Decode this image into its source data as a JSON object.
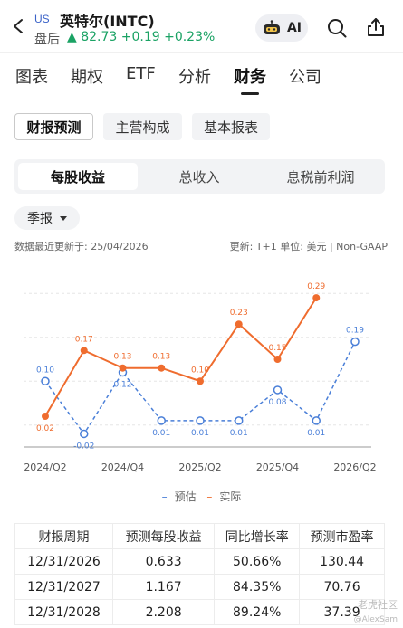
{
  "header": {
    "market_badge": "US",
    "stock_name": "英特尔(INTC)",
    "session_label": "盘后",
    "quote": "▲ 82.73 +0.19 +0.23%",
    "ai_label": "AI"
  },
  "tabs": [
    "图表",
    "期权",
    "ETF",
    "分析",
    "财务",
    "公司"
  ],
  "active_tab": "财务",
  "sub_buttons": [
    "财报预测",
    "主营构成",
    "基本报表"
  ],
  "segments": [
    "每股收益",
    "总收入",
    "息税前利润"
  ],
  "period_label": "季报",
  "update_note": "数据最近更新于: 25/04/2026",
  "unit_note": "更新: T+1  单位: 美元 | Non-GAAP",
  "legend": {
    "estimate": "预估",
    "actual": "实际"
  },
  "colors": {
    "estimate": "#4a7fd8",
    "actual": "#ef6c2e",
    "up": "#1aa264"
  },
  "chart_data": {
    "type": "line",
    "x_ticks": [
      "2024/Q2",
      "2024/Q4",
      "2025/Q2",
      "2025/Q4",
      "2026/Q2"
    ],
    "x": [
      "2024/Q2",
      "2024/Q3",
      "2024/Q4",
      "2025/Q1",
      "2025/Q2",
      "2025/Q3",
      "2025/Q4",
      "2026/Q1",
      "2026/Q2"
    ],
    "series": [
      {
        "name": "预估",
        "style": "dashed",
        "values": [
          0.1,
          -0.02,
          0.12,
          0.01,
          0.01,
          0.01,
          0.08,
          0.01,
          0.19
        ]
      },
      {
        "name": "实际",
        "style": "solid",
        "values": [
          0.02,
          0.17,
          0.13,
          0.13,
          0.1,
          0.23,
          0.15,
          0.29,
          null
        ]
      }
    ],
    "ylim": [
      -0.05,
      0.35
    ],
    "grid": true
  },
  "table": {
    "headers": [
      "财报周期",
      "预测每股收益",
      "同比增长率",
      "预测市盈率"
    ],
    "rows": [
      [
        "12/31/2026",
        "0.633",
        "50.66%",
        "130.44"
      ],
      [
        "12/31/2027",
        "1.167",
        "84.35%",
        "70.76"
      ],
      [
        "12/31/2028",
        "2.208",
        "89.24%",
        "37.39"
      ]
    ]
  },
  "watermark": "老虎社区",
  "watermark_sub": "@AlexSam"
}
